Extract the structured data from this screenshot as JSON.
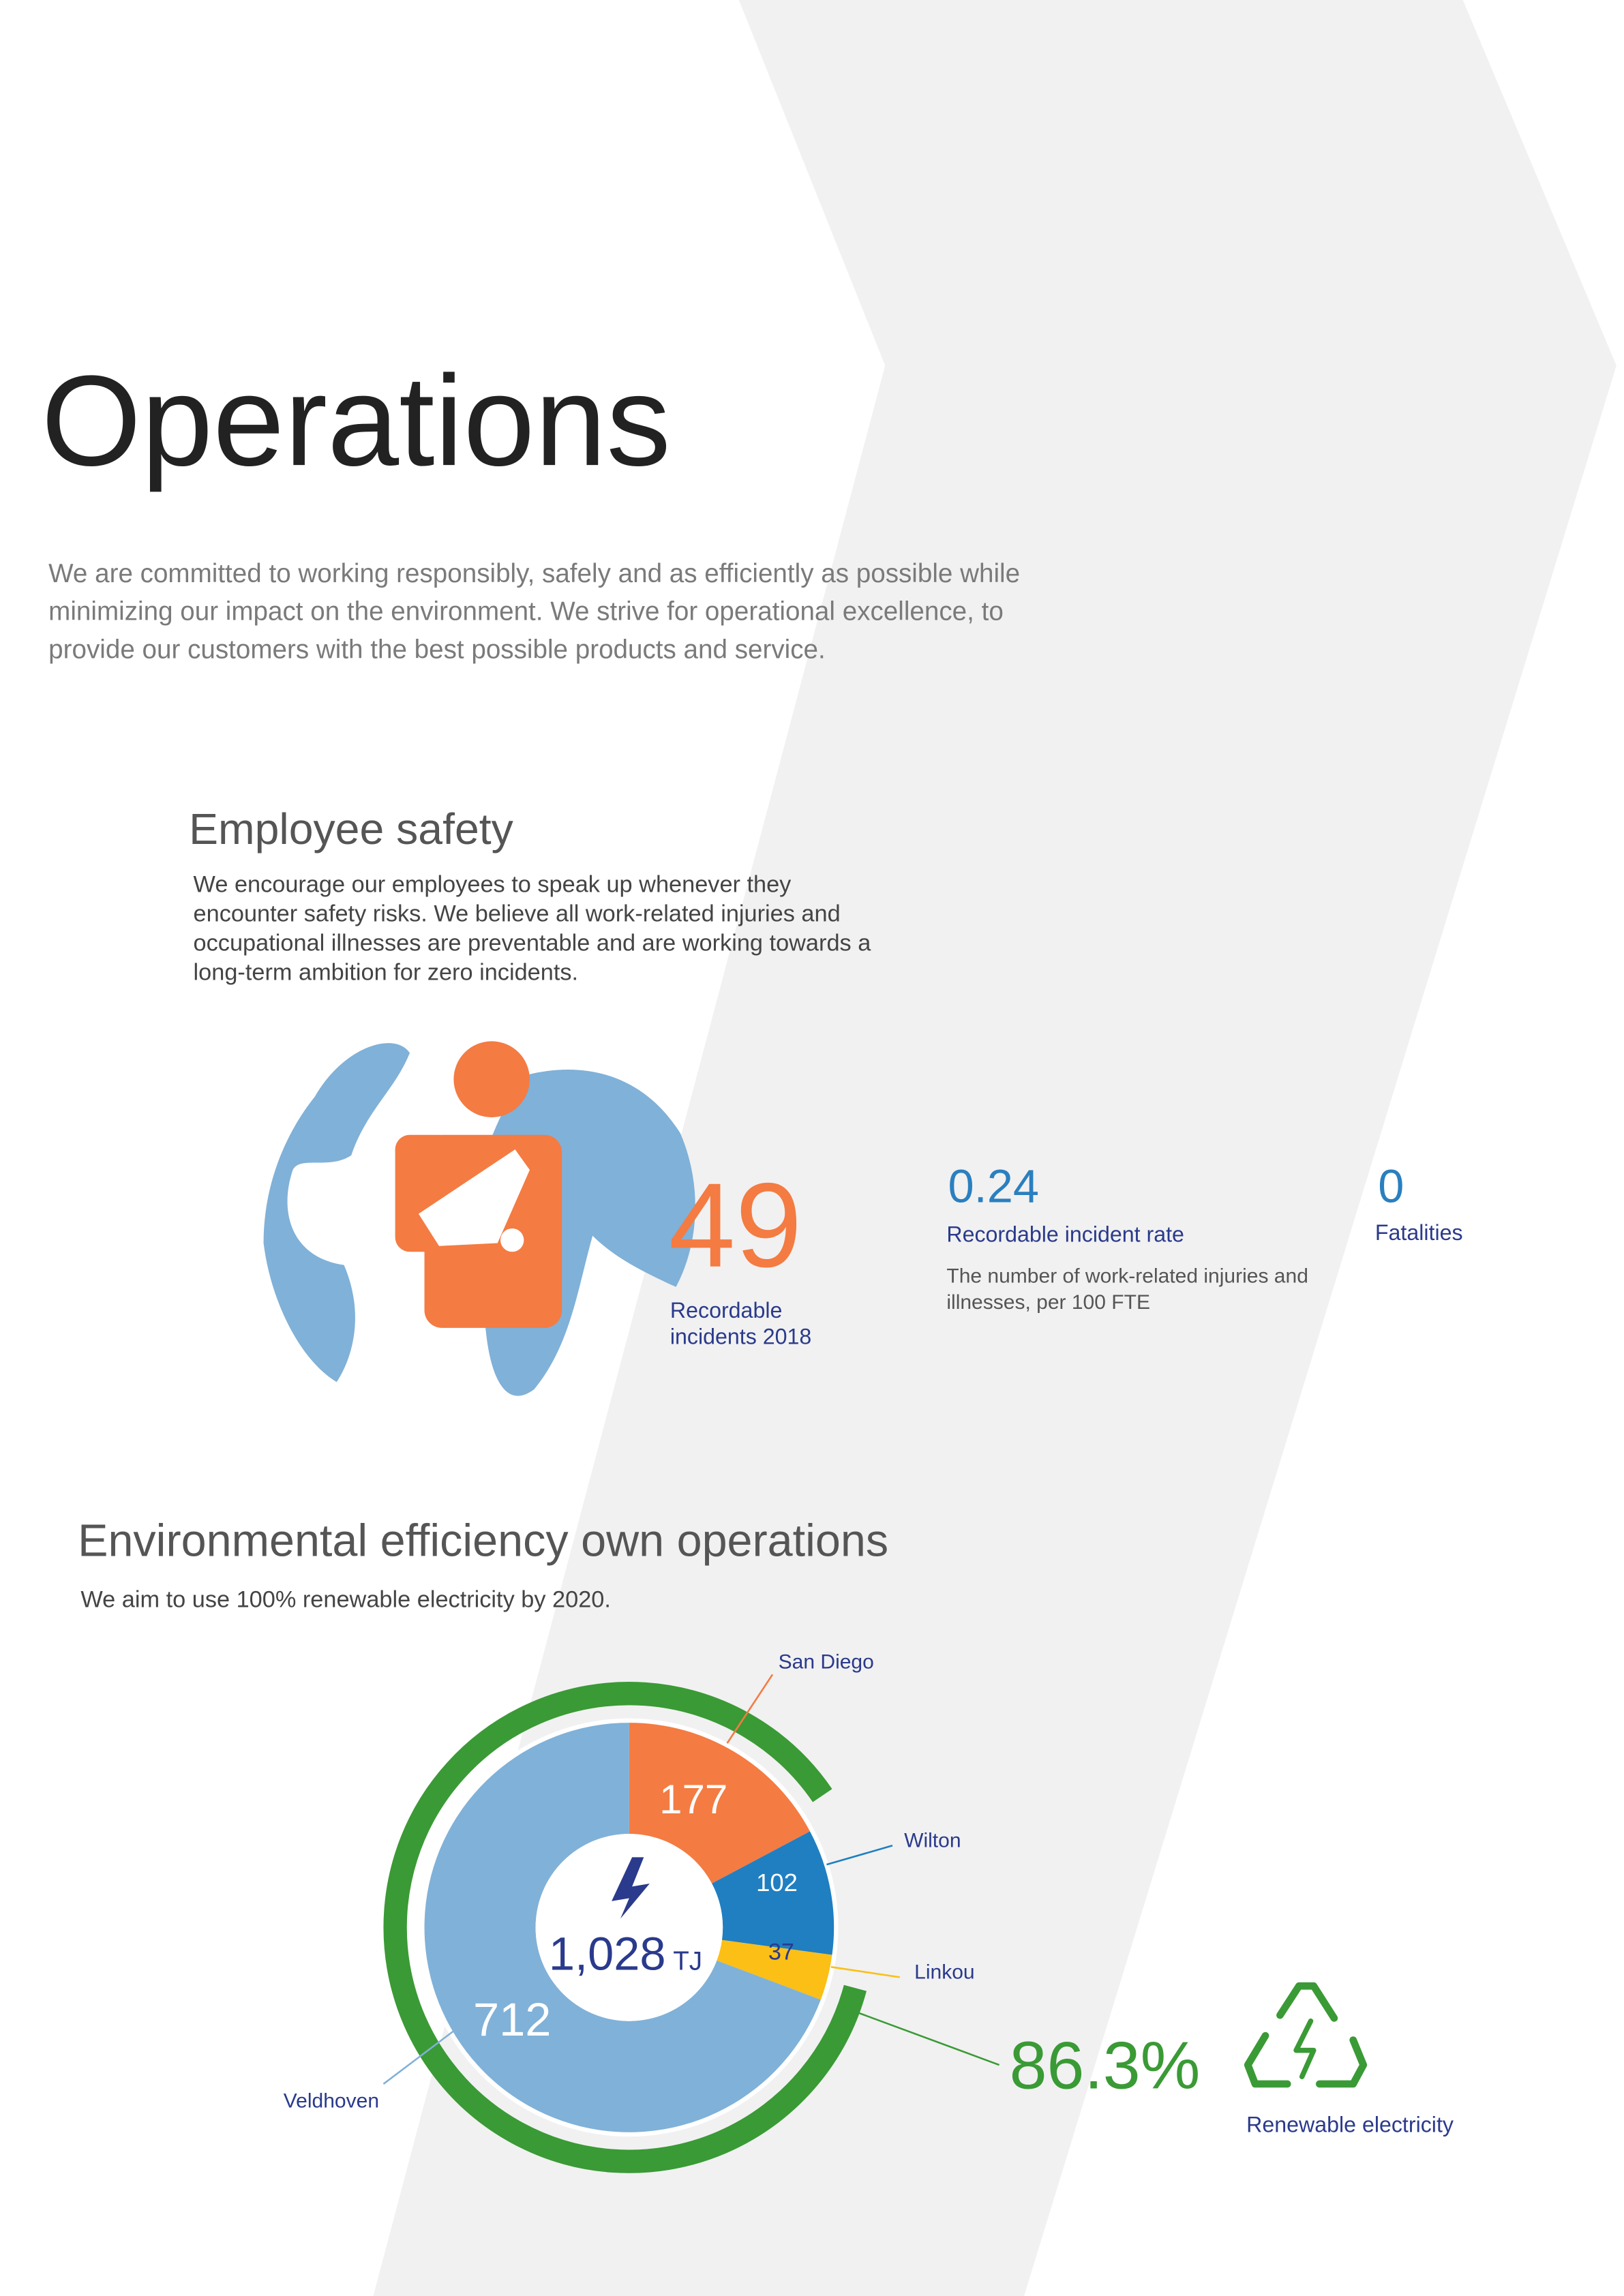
{
  "header": {
    "title": "Operations",
    "intro": [
      "We are committed to working responsibly, safely and as efficiently as possible while",
      "minimizing our impact on the environment. We strive for operational excellence, to",
      "provide our customers with the best possible products and service."
    ]
  },
  "employee_safety": {
    "title": "Employee safety",
    "text": [
      "We encourage our employees to speak up whenever they",
      "encounter safety risks. We believe all work-related injuries and",
      "occupational illnesses are preventable and are working towards a",
      "long-term ambition for zero incidents."
    ],
    "incidents": {
      "value": "49",
      "label": [
        "Recordable",
        "incidents 2018"
      ]
    },
    "rate": {
      "value": "0.24",
      "label": "Recordable incident rate",
      "note": [
        "The number of work-related injuries and",
        "illnesses, per 100 FTE"
      ]
    },
    "fatalities": {
      "value": "0",
      "label": "Fatalities"
    }
  },
  "environment": {
    "title": "Environmental efficiency own operations",
    "text": "We aim to use 100% renewable electricity by 2020.",
    "chart_data": {
      "type": "donut",
      "categories": [
        "San Diego",
        "Wilton",
        "Linkou",
        "Veldhoven"
      ],
      "values": [
        177,
        102,
        37,
        712
      ],
      "colors": [
        "#f47b42",
        "#1f7fc1",
        "#fbbf16",
        "#80b1d8"
      ],
      "total": "1,028",
      "unit": "TJ",
      "renewable": {
        "value": 86.3,
        "label": "86.3%",
        "name": "Renewable electricity",
        "color": "#3a9a35"
      }
    }
  }
}
